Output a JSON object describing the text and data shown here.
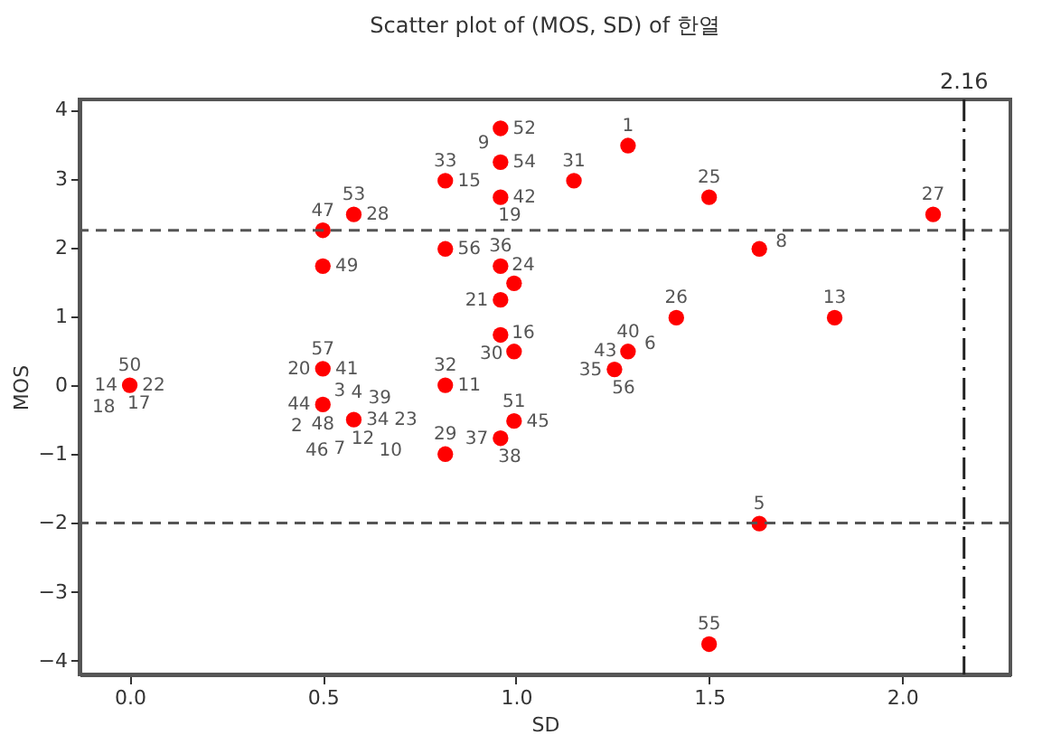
{
  "chart_data": {
    "type": "scatter",
    "title": "Scatter plot of (MOS, SD) of 한열",
    "xlabel": "SD",
    "ylabel": "MOS",
    "x": [
      0,
      0.5,
      0.5,
      0.58,
      0.817,
      0.817,
      0.96,
      0.96,
      0.96,
      0.96,
      0.995,
      0.96,
      0.96,
      0.995,
      0.5,
      0.817,
      0.5,
      0.58,
      0.817,
      0.96,
      0.995,
      1.63,
      1.5,
      1.415,
      1.825,
      1.29,
      1.255,
      1.29,
      1.15,
      1.5,
      2.08,
      1.63
    ],
    "series": [
      {
        "color": "#ff0000",
        "values": [
          0,
          2.25,
          1.73,
          2.48,
          2.97,
          1.98,
          3.73,
          3.24,
          2.73,
          1.73,
          1.48,
          1.24,
          0.73,
          0.49,
          0.24,
          0,
          -0.28,
          -0.5,
          -1.0,
          -0.77,
          -0.52,
          -2.01,
          -3.76,
          0.98,
          0.98,
          0.49,
          0.23,
          3.48,
          2.97,
          2.73,
          2.48,
          1.98
        ]
      }
    ],
    "xlim": [
      -0.13,
      2.28
    ],
    "ylim": [
      -4.2,
      4.15
    ],
    "xticks": [
      {
        "value": 0,
        "label": "0.0"
      },
      {
        "value": 0.5,
        "label": "0.5"
      },
      {
        "value": 1,
        "label": "1.0"
      },
      {
        "value": 1.5,
        "label": "1.5"
      },
      {
        "value": 2,
        "label": "2.0"
      }
    ],
    "yticks": [
      -4,
      -3,
      -2,
      -1,
      0,
      1,
      2,
      3,
      4
    ],
    "marker": "circle",
    "ref_lines": [
      {
        "axis": "y",
        "value": 2.25,
        "line_style": "dashed",
        "color": "#555555"
      },
      {
        "axis": "y",
        "value": -2,
        "line_style": "dashed",
        "color": "#555555"
      },
      {
        "axis": "x",
        "value": 2.16,
        "label": "2.16",
        "line_style": "dashdot",
        "color": "#222222"
      }
    ],
    "annotations": [
      {
        "text": "50",
        "x": 0,
        "y": 0
      },
      {
        "text": "22",
        "x": 0,
        "y": 0
      },
      {
        "text": "17",
        "x": 0,
        "y": 0
      },
      {
        "text": "14",
        "x": 0,
        "y": 0
      },
      {
        "text": "18",
        "x": 0,
        "y": 0
      },
      {
        "text": "47",
        "x": 0.5,
        "y": 2.25
      },
      {
        "text": "49",
        "x": 0.5,
        "y": 1.73
      },
      {
        "text": "53",
        "x": 0.58,
        "y": 2.48
      },
      {
        "text": "28",
        "x": 0.58,
        "y": 2.48
      },
      {
        "text": "33",
        "x": 0.817,
        "y": 2.97
      },
      {
        "text": "15",
        "x": 0.817,
        "y": 2.97
      },
      {
        "text": "56",
        "x": 0.817,
        "y": 1.98
      },
      {
        "text": "52",
        "x": 0.96,
        "y": 3.73
      },
      {
        "text": "9",
        "x": 0.96,
        "y": 3.73
      },
      {
        "text": "54",
        "x": 0.96,
        "y": 3.24
      },
      {
        "text": "42",
        "x": 0.96,
        "y": 2.73
      },
      {
        "text": "19",
        "x": 0.96,
        "y": 2.73
      },
      {
        "text": "36",
        "x": 0.96,
        "y": 1.73
      },
      {
        "text": "24",
        "x": 0.995,
        "y": 1.48
      },
      {
        "text": "21",
        "x": 0.96,
        "y": 1.24
      },
      {
        "text": "30",
        "x": 0.96,
        "y": 0.73
      },
      {
        "text": "16",
        "x": 0.995,
        "y": 0.49
      },
      {
        "text": "57",
        "x": 0.5,
        "y": 0.24
      },
      {
        "text": "41",
        "x": 0.5,
        "y": 0.24
      },
      {
        "text": "20",
        "x": 0.5,
        "y": 0.24
      },
      {
        "text": "32",
        "x": 0.817,
        "y": 0
      },
      {
        "text": "11",
        "x": 0.817,
        "y": 0
      },
      {
        "text": "48",
        "x": 0.5,
        "y": -0.28
      },
      {
        "text": "44",
        "x": 0.5,
        "y": -0.28
      },
      {
        "text": "3",
        "x": 0.5,
        "y": -0.28
      },
      {
        "text": "4",
        "x": 0.5,
        "y": -0.28
      },
      {
        "text": "2",
        "x": 0.5,
        "y": -0.28
      },
      {
        "text": "34",
        "x": 0.58,
        "y": -0.5
      },
      {
        "text": "12",
        "x": 0.58,
        "y": -0.5
      },
      {
        "text": "39",
        "x": 0.58,
        "y": -0.5
      },
      {
        "text": "7",
        "x": 0.58,
        "y": -0.5
      },
      {
        "text": "23",
        "x": 0.58,
        "y": -0.5
      },
      {
        "text": "10",
        "x": 0.58,
        "y": -0.5
      },
      {
        "text": "46",
        "x": 0.58,
        "y": -0.5
      },
      {
        "text": "29",
        "x": 0.817,
        "y": -1.0
      },
      {
        "text": "38",
        "x": 0.96,
        "y": -0.77
      },
      {
        "text": "37",
        "x": 0.96,
        "y": -0.77
      },
      {
        "text": "51",
        "x": 0.995,
        "y": -0.52
      },
      {
        "text": "45",
        "x": 0.995,
        "y": -0.52
      },
      {
        "text": "5",
        "x": 1.63,
        "y": -2.01
      },
      {
        "text": "55",
        "x": 1.5,
        "y": -3.76
      },
      {
        "text": "26",
        "x": 1.415,
        "y": 0.98
      },
      {
        "text": "13",
        "x": 1.825,
        "y": 0.98
      },
      {
        "text": "40",
        "x": 1.29,
        "y": 0.49
      },
      {
        "text": "6",
        "x": 1.29,
        "y": 0.49
      },
      {
        "text": "56",
        "x": 1.255,
        "y": 0.23
      },
      {
        "text": "35",
        "x": 1.255,
        "y": 0.23
      },
      {
        "text": "43",
        "x": 1.255,
        "y": 0.23
      },
      {
        "text": "1",
        "x": 1.29,
        "y": 3.48
      },
      {
        "text": "31",
        "x": 1.15,
        "y": 2.97
      },
      {
        "text": "25",
        "x": 1.5,
        "y": 2.73
      },
      {
        "text": "27",
        "x": 2.08,
        "y": 2.48
      },
      {
        "text": "8",
        "x": 1.63,
        "y": 1.98
      }
    ]
  }
}
